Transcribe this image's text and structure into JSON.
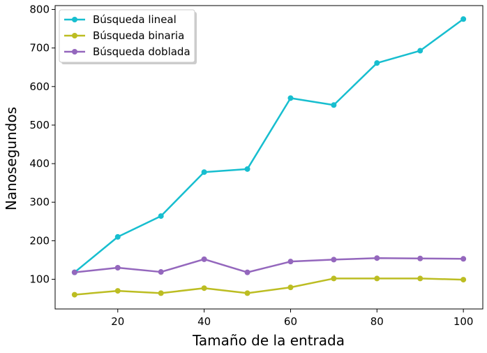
{
  "chart_data": {
    "type": "line",
    "title": "",
    "xlabel": "Tamaño de la entrada",
    "ylabel": "Nanosegundos",
    "x": [
      10,
      20,
      30,
      40,
      50,
      60,
      70,
      80,
      90,
      100
    ],
    "xlim": [
      5.5,
      104.5
    ],
    "ylim": [
      23,
      810
    ],
    "xticks": [
      20,
      40,
      60,
      80,
      100
    ],
    "yticks": [
      100,
      200,
      300,
      400,
      500,
      600,
      700,
      800
    ],
    "grid": false,
    "legend_position": "top-left",
    "series": [
      {
        "name": "Búsqueda lineal",
        "color": "#17becf",
        "values": [
          118,
          210,
          264,
          378,
          386,
          570,
          552,
          661,
          693,
          775
        ]
      },
      {
        "name": "Búsqueda binaria",
        "color": "#bcbd22",
        "values": [
          60,
          70,
          64,
          77,
          64,
          79,
          102,
          102,
          102,
          99
        ]
      },
      {
        "name": "Búsqueda doblada",
        "color": "#9467bd",
        "values": [
          118,
          130,
          119,
          152,
          118,
          146,
          151,
          155,
          154,
          153
        ]
      }
    ]
  }
}
